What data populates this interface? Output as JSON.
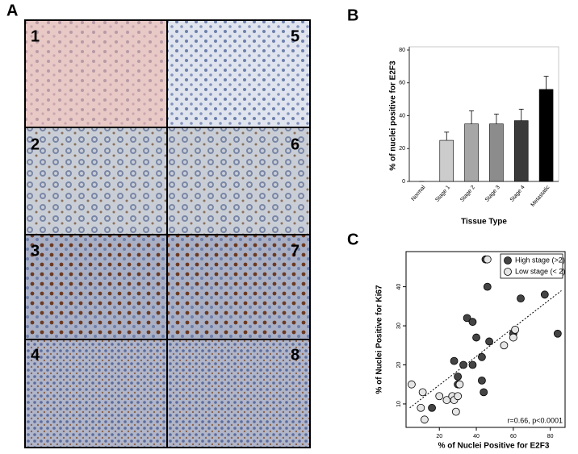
{
  "panel_letters": [
    "A",
    "B",
    "C"
  ],
  "micrograph_labels": [
    "1",
    "2",
    "3",
    "4",
    "5",
    "6",
    "7",
    "8"
  ],
  "chart_data": [
    {
      "type": "bar",
      "ylabel": "% of nuclei positive for E2F3",
      "xlabel": "Tissue Type",
      "categories": [
        "Normal",
        "Stage 1",
        "Stage 2",
        "Stage 3",
        "Stage 4",
        "Metastatic"
      ],
      "values": [
        0,
        25,
        35,
        35,
        37,
        56
      ],
      "errors": [
        0,
        5,
        8,
        6,
        7,
        8
      ],
      "colors": [
        "#ffffff",
        "#cccccc",
        "#a6a6a6",
        "#8c8c8c",
        "#3a3a3a",
        "#000000"
      ],
      "ylim": [
        0,
        80
      ],
      "yticks": [
        0,
        20,
        40,
        60,
        80
      ]
    },
    {
      "type": "scatter",
      "xlabel": "% of Nuclei Positive for E2F3",
      "ylabel": "% of Nuclei Positive for Ki67",
      "annotation": "r=0.66, p<0.0001",
      "series": [
        {
          "name": "High stage (>2)",
          "color": "#444444",
          "x": [
            16,
            28,
            30,
            30,
            33,
            35,
            38,
            38,
            43,
            45,
            46,
            47,
            44,
            60,
            64,
            77,
            84,
            43,
            40
          ],
          "y": [
            9,
            21,
            17,
            15,
            20,
            32,
            31,
            20,
            22,
            47,
            40,
            26,
            13,
            28,
            37,
            38,
            28,
            16,
            27
          ]
        },
        {
          "name": "Low stage (< 2)",
          "color": "#e6e6e6",
          "x": [
            5,
            10,
            11,
            12,
            20,
            24,
            27,
            28,
            29,
            30,
            31,
            46,
            55,
            61,
            60
          ],
          "y": [
            15,
            9,
            13,
            6,
            12,
            11,
            12,
            11,
            8,
            12,
            15,
            47,
            25,
            29,
            27
          ]
        }
      ],
      "trend_line": {
        "x": [
          4,
          86
        ],
        "y": [
          9,
          39
        ]
      },
      "xlim": [
        2,
        88
      ],
      "xticks": [
        20,
        40,
        60,
        80
      ],
      "ylim": [
        4,
        49
      ],
      "yticks": [
        10,
        20,
        30,
        40
      ],
      "legend": "top-right"
    }
  ]
}
